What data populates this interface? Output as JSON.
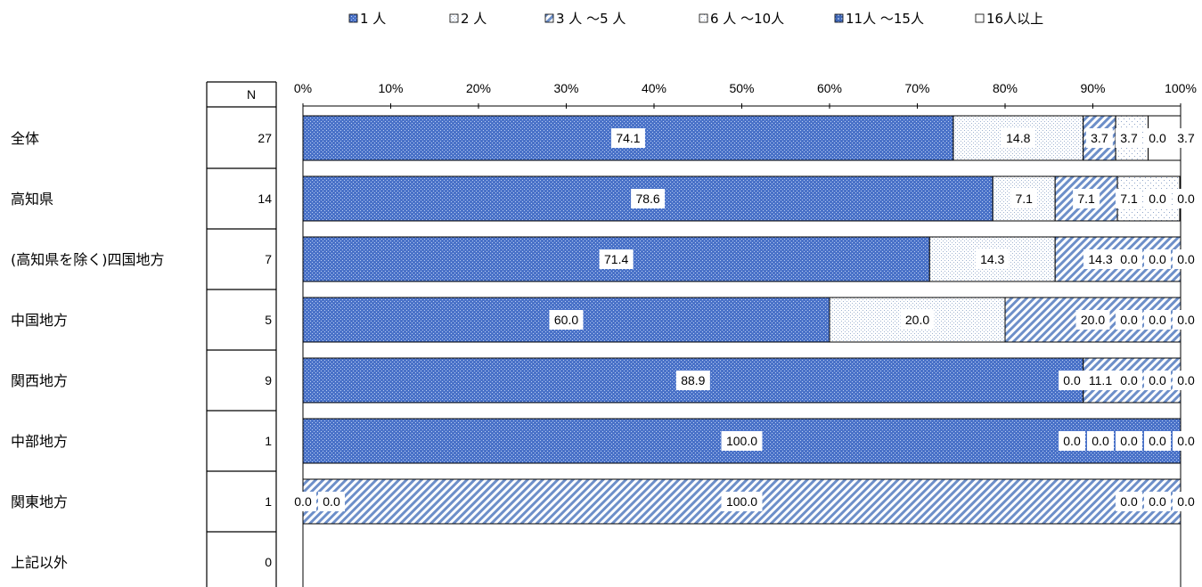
{
  "chart_data": {
    "type": "bar",
    "orientation": "horizontal",
    "stacked": "percent",
    "n_header": "N",
    "categories": [
      "全体",
      "高知県",
      "(高知県を除く)四国地方",
      "中国地方",
      "関西地方",
      "中部地方",
      "関東地方",
      "上記以外"
    ],
    "n_values": [
      "27",
      "14",
      "7",
      "5",
      "9",
      "1",
      "1",
      "0"
    ],
    "x_ticks": [
      "0%",
      "10%",
      "20%",
      "30%",
      "40%",
      "50%",
      "60%",
      "70%",
      "80%",
      "90%",
      "100%"
    ],
    "xlim": [
      0,
      100
    ],
    "legend_position": "top",
    "series": [
      {
        "name": "1 人",
        "pattern": "dots-blue",
        "values": [
          74.1,
          78.6,
          71.4,
          60.0,
          88.9,
          100.0,
          0.0,
          null
        ],
        "labels": [
          "74.1",
          "78.6",
          "71.4",
          "60.0",
          "88.9",
          "100.0",
          "0.0",
          ""
        ]
      },
      {
        "name": "2 人",
        "pattern": "dots-light",
        "values": [
          14.8,
          7.1,
          14.3,
          20.0,
          0.0,
          0.0,
          0.0,
          null
        ],
        "labels": [
          "14.8",
          "7.1",
          "14.3",
          "20.0",
          "0.0",
          "0.0",
          "0.0",
          ""
        ]
      },
      {
        "name": "3 人 〜5 人",
        "pattern": "hatch-blue",
        "values": [
          3.7,
          7.1,
          14.3,
          20.0,
          11.1,
          0.0,
          100.0,
          null
        ],
        "labels": [
          "3.7",
          "7.1",
          "14.3",
          "20.0",
          "11.1",
          "0.0",
          "100.0",
          ""
        ]
      },
      {
        "name": "6 人 〜10人",
        "pattern": "dots-sparse",
        "values": [
          3.7,
          7.1,
          0.0,
          0.0,
          0.0,
          0.0,
          0.0,
          null
        ],
        "labels": [
          "3.7",
          "7.1",
          "0.0",
          "0.0",
          "0.0",
          "0.0",
          "0.0",
          ""
        ]
      },
      {
        "name": "11人 〜15人",
        "pattern": "grid-blue",
        "values": [
          0.0,
          0.0,
          0.0,
          0.0,
          0.0,
          0.0,
          0.0,
          null
        ],
        "labels": [
          "0.0",
          "0.0",
          "0.0",
          "0.0",
          "0.0",
          "0.0",
          "0.0",
          ""
        ]
      },
      {
        "name": "16人以上",
        "pattern": "plain",
        "values": [
          3.7,
          0.0,
          0.0,
          0.0,
          0.0,
          0.0,
          0.0,
          null
        ],
        "labels": [
          "3.7",
          "0.0",
          "0.0",
          "0.0",
          "0.0",
          "0.0",
          "0.0",
          ""
        ]
      }
    ]
  }
}
